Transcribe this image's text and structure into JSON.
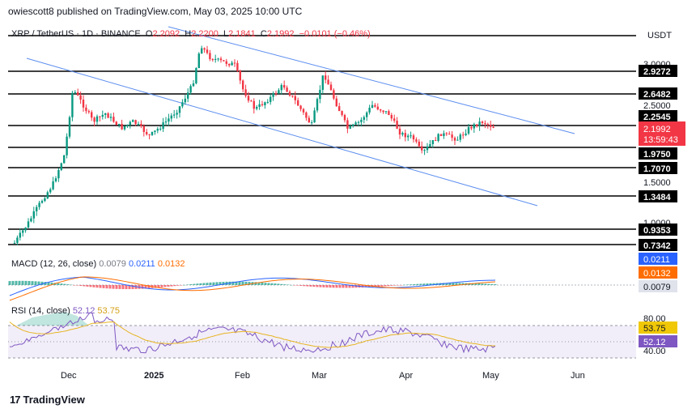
{
  "header": {
    "publisher_text": "owiescott8 published on TradingView.com, May 03, 2025 10:00 UTC"
  },
  "symbol": {
    "name": "XRP / TetherUS · 1D · BINANCE",
    "open_label": "O",
    "open": "2.2092",
    "high_label": "H",
    "high": "2.2200",
    "low_label": "L",
    "low": "2.1841",
    "close_label": "C",
    "close": "2.1992",
    "change": "−0.0101 (−0.46%)"
  },
  "currency": "USDT",
  "price_axis": {
    "labels": [
      "3.0000",
      "2.5000",
      "1.5000",
      "1.0000"
    ],
    "levels": [
      "2.9272",
      "2.6482",
      "2.2545",
      "1.9750",
      "1.7070",
      "1.3484",
      "0.9353",
      "0.7342"
    ],
    "current_price": "2.1992",
    "countdown": "13:59:43"
  },
  "time_axis": [
    "Dec",
    "2025",
    "Feb",
    "Mar",
    "Apr",
    "May",
    "Jun"
  ],
  "macd": {
    "title": "MACD (12, 26, close)",
    "v1": "0.0079",
    "v2": "0.0211",
    "v3": "0.0132",
    "axis_labels": [
      "0.0211",
      "0.0132",
      "0.0079"
    ]
  },
  "rsi": {
    "title": "RSI (14, close)",
    "v1": "52.12",
    "v2": "53.75",
    "axis_ticks": [
      "80.00",
      "40.00"
    ],
    "axis_labels": [
      "53.75",
      "52.12"
    ]
  },
  "footer": {
    "brand": "TradingView"
  },
  "colors": {
    "up": "#089981",
    "down": "#f23645",
    "trend": "#5b8def",
    "level": "#000000",
    "macd": "#2962ff",
    "signal": "#ff6d00",
    "rsi": "#7e57c2",
    "rsi_ma": "#e6b422"
  }
}
